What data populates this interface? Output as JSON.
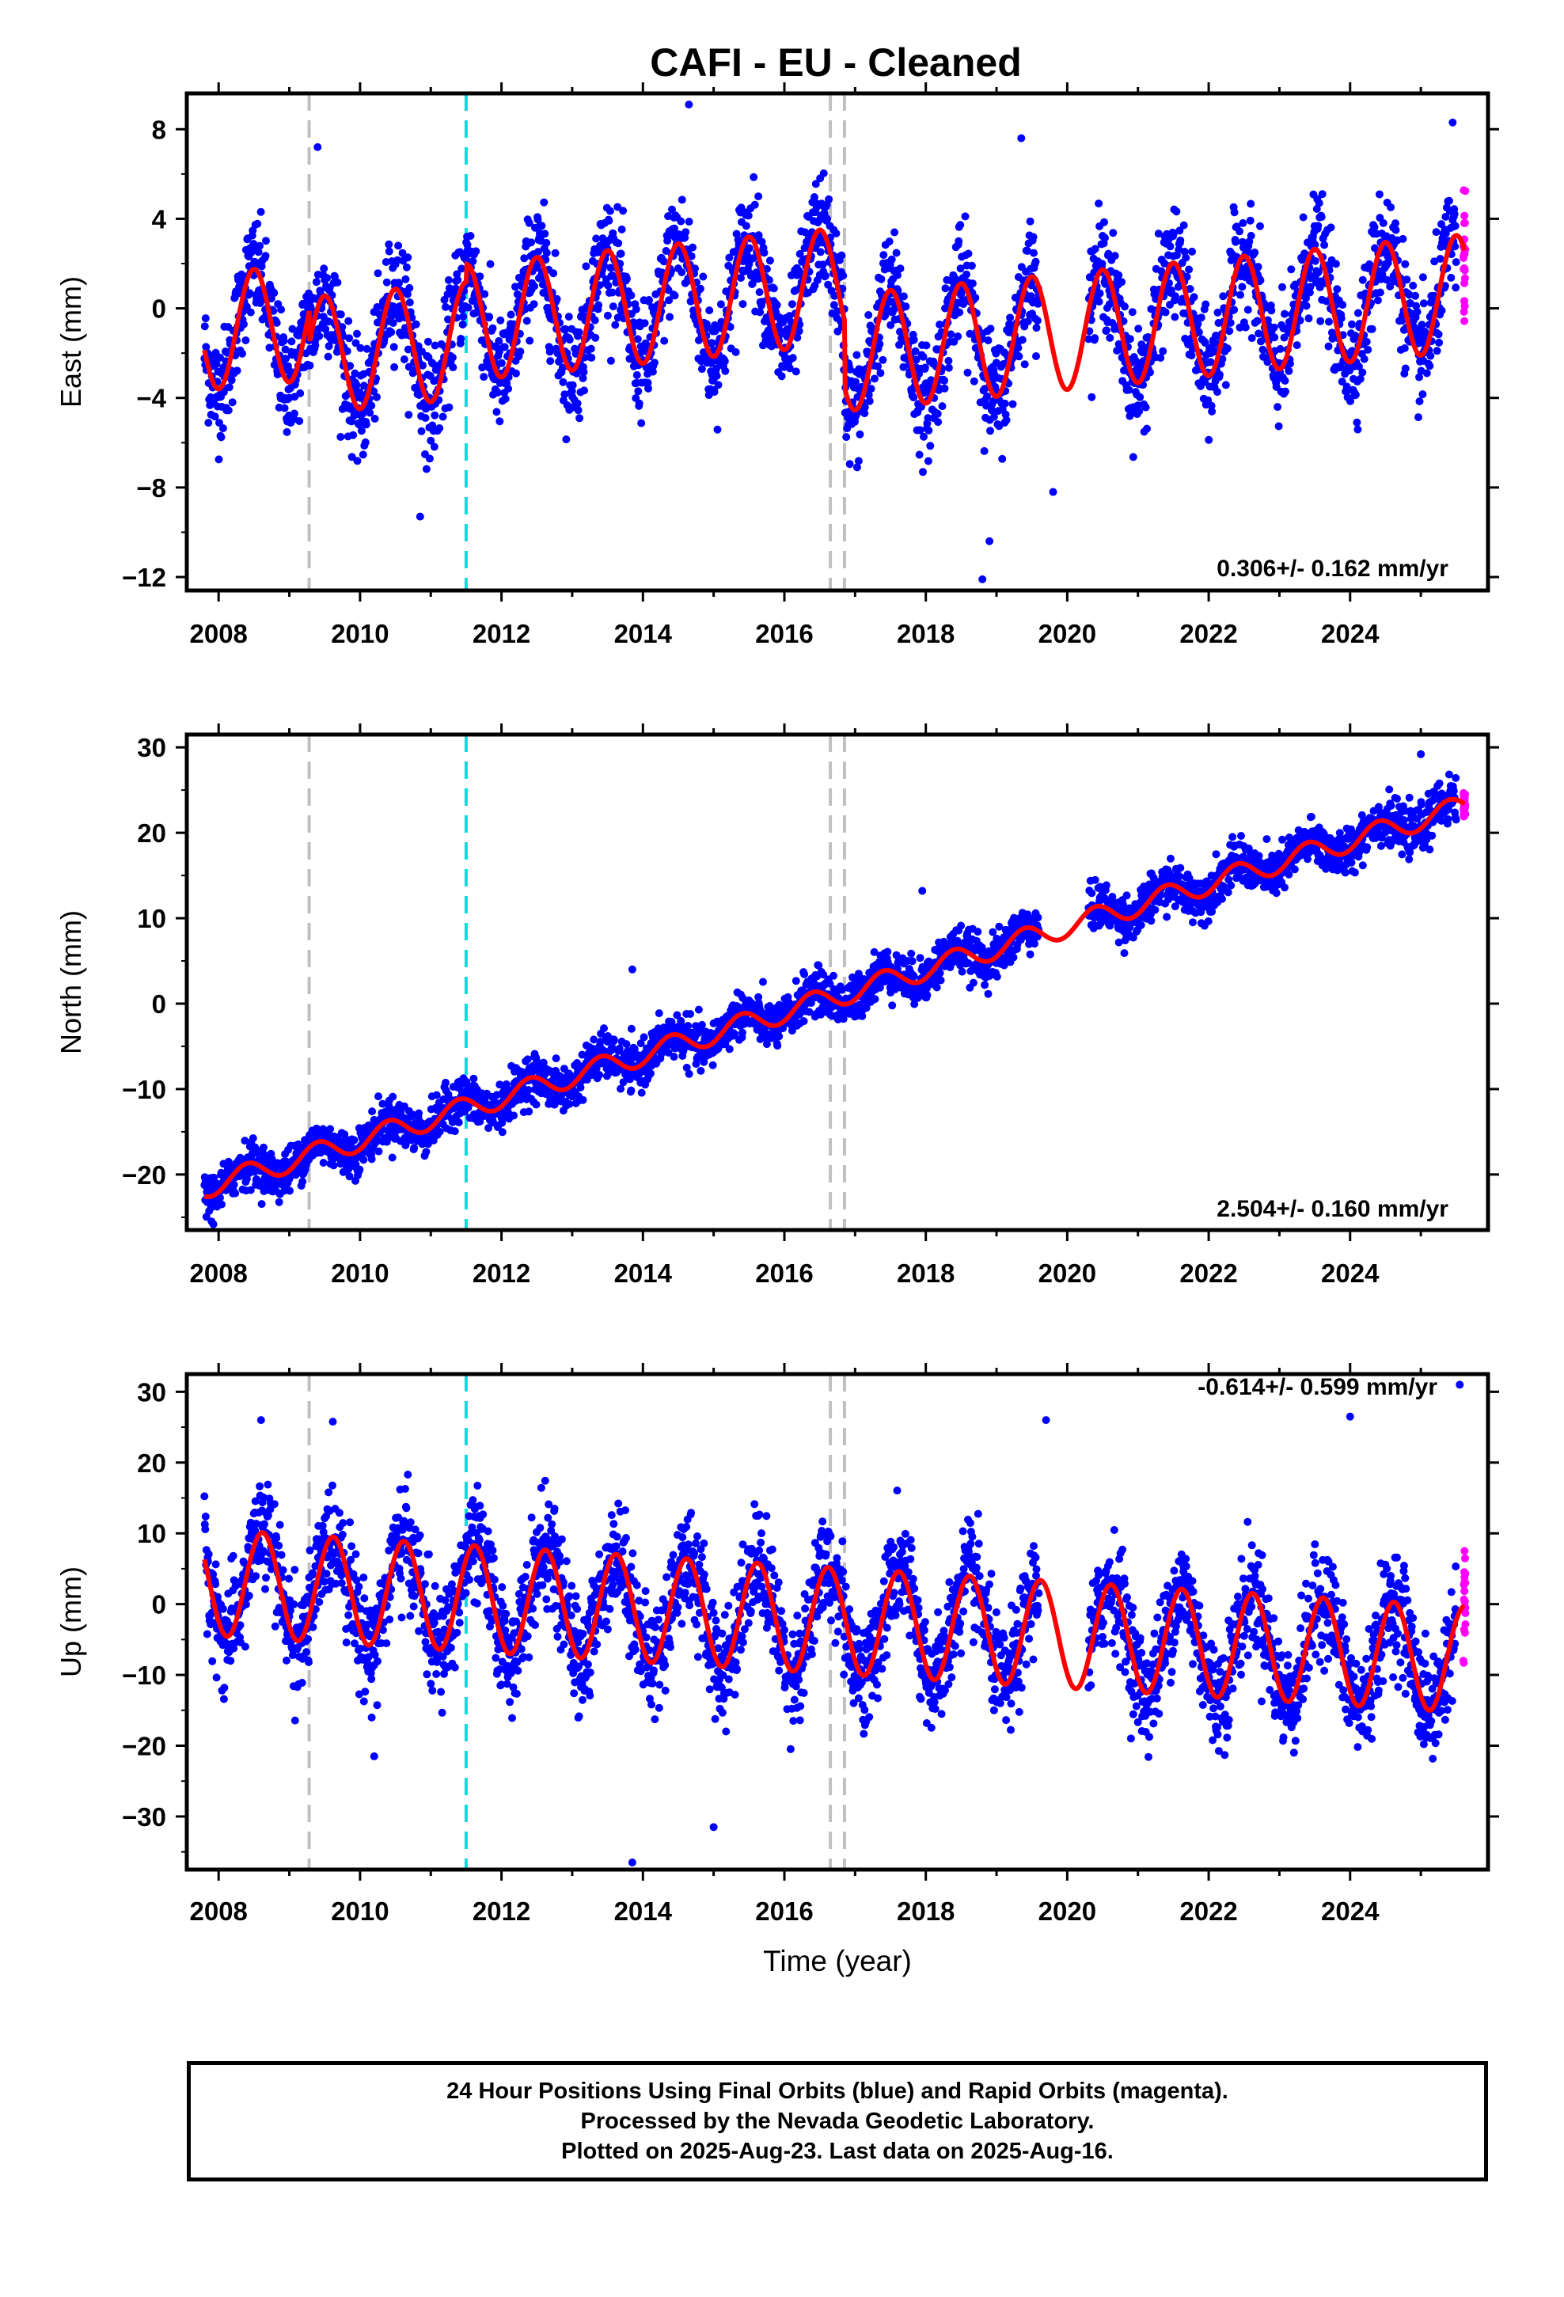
{
  "title": "CAFI  - EU - Cleaned",
  "x_axis_label": "Time (year)",
  "footer": {
    "line1": "24 Hour Positions Using Final Orbits (blue) and Rapid Orbits (magenta).",
    "line2": "Processed by the Nevada Geodetic Laboratory.",
    "line3": "Plotted on 2025-Aug-23. Last data on 2025-Aug-16."
  },
  "colors": {
    "final_orbits": "#0000ff",
    "rapid_orbits": "#ff00ff",
    "model_fit": "#ff0000",
    "equipment_change": "#c0c0c0",
    "earthquake": "#00e0e0"
  },
  "chart_data": [
    {
      "type": "scatter",
      "component": "East",
      "ylabel": "East (mm)",
      "rate_label": "0.306+/- 0.162 mm/yr",
      "xlim": [
        2007.55,
        2025.95
      ],
      "ylim": [
        -12.6,
        9.6
      ],
      "yticks": [
        8,
        4,
        0,
        -4,
        -8,
        -12
      ],
      "xticks": [
        2008,
        2010,
        2012,
        2014,
        2016,
        2018,
        2020,
        2022,
        2024
      ],
      "data_start": 2007.8,
      "data_end": 2025.62,
      "gaps": [
        [
          2019.6,
          2020.3
        ]
      ],
      "rapid_start": 2025.5,
      "grey_lines": [
        2009.28,
        2016.65,
        2016.85
      ],
      "cyan_lines": [
        2011.5
      ],
      "model": {
        "offset_2008": -1.0,
        "rate_mm_per_yr": 0.306,
        "annual_amplitude": 2.6,
        "annual_peak_year_fraction": 0.5,
        "steps": [
          {
            "year": 2009.28,
            "delta": -1.5
          },
          {
            "year": 2011.5,
            "delta": 0.8
          },
          {
            "year": 2016.85,
            "delta": -3.0
          }
        ]
      },
      "scatter_sigma": 1.2,
      "outliers": [
        {
          "x": 2014.65,
          "y": 9.1
        },
        {
          "x": 2018.8,
          "y": -12.1
        },
        {
          "x": 2018.9,
          "y": -10.4
        },
        {
          "x": 2019.35,
          "y": 7.6
        },
        {
          "x": 2009.4,
          "y": 7.2
        },
        {
          "x": 2025.45,
          "y": 8.3
        },
        {
          "x": 2010.85,
          "y": -9.3
        },
        {
          "x": 2019.8,
          "y": -8.2
        }
      ]
    },
    {
      "type": "scatter",
      "component": "North",
      "ylabel": "North (mm)",
      "rate_label": "2.504+/- 0.160 mm/yr",
      "xlim": [
        2007.55,
        2025.95
      ],
      "ylim": [
        -26.5,
        31.5
      ],
      "yticks": [
        30,
        20,
        10,
        0,
        -10,
        -20
      ],
      "xticks": [
        2008,
        2010,
        2012,
        2014,
        2016,
        2018,
        2020,
        2022,
        2024
      ],
      "data_start": 2007.8,
      "data_end": 2025.62,
      "gaps": [
        [
          2019.6,
          2020.3
        ]
      ],
      "rapid_start": 2025.5,
      "grey_lines": [
        2009.28,
        2016.65,
        2016.85
      ],
      "cyan_lines": [
        2011.5
      ],
      "model": {
        "offset_2008": -21.0,
        "rate_mm_per_yr": 2.504,
        "annual_amplitude": 1.3,
        "annual_peak_year_fraction": 0.4,
        "steps": []
      },
      "scatter_sigma": 1.3,
      "outliers": [
        {
          "x": 2013.85,
          "y": 4.0
        },
        {
          "x": 2017.95,
          "y": 13.2
        },
        {
          "x": 2025.0,
          "y": 29.2
        },
        {
          "x": 2007.9,
          "y": -25.5
        }
      ]
    },
    {
      "type": "scatter",
      "component": "Up",
      "ylabel": "Up (mm)",
      "rate_label": "-0.614+/- 0.599 mm/yr",
      "xlim": [
        2007.55,
        2025.95
      ],
      "ylim": [
        -37.5,
        32.5
      ],
      "yticks": [
        30,
        20,
        10,
        0,
        -10,
        -20,
        -30
      ],
      "xticks": [
        2008,
        2010,
        2012,
        2014,
        2016,
        2018,
        2020,
        2022,
        2024
      ],
      "data_start": 2007.8,
      "data_end": 2025.62,
      "gaps": [
        [
          2019.6,
          2020.3
        ]
      ],
      "rapid_start": 2025.5,
      "grey_lines": [
        2009.28,
        2016.65,
        2016.85
      ],
      "cyan_lines": [
        2011.5
      ],
      "model": {
        "offset_2008": 3.0,
        "rate_mm_per_yr": -0.614,
        "annual_amplitude": 7.5,
        "annual_peak_year_fraction": 0.62,
        "steps": [
          {
            "year": 2016.85,
            "delta": 0.0
          }
        ]
      },
      "scatter_sigma": 3.8,
      "outliers": [
        {
          "x": 2013.85,
          "y": -36.5
        },
        {
          "x": 2008.6,
          "y": 26.0
        },
        {
          "x": 2019.7,
          "y": 26.0
        },
        {
          "x": 2024.0,
          "y": 26.5
        },
        {
          "x": 2015.0,
          "y": -31.5
        },
        {
          "x": 2010.2,
          "y": -21.5
        },
        {
          "x": 2025.55,
          "y": 31.0
        }
      ]
    }
  ]
}
